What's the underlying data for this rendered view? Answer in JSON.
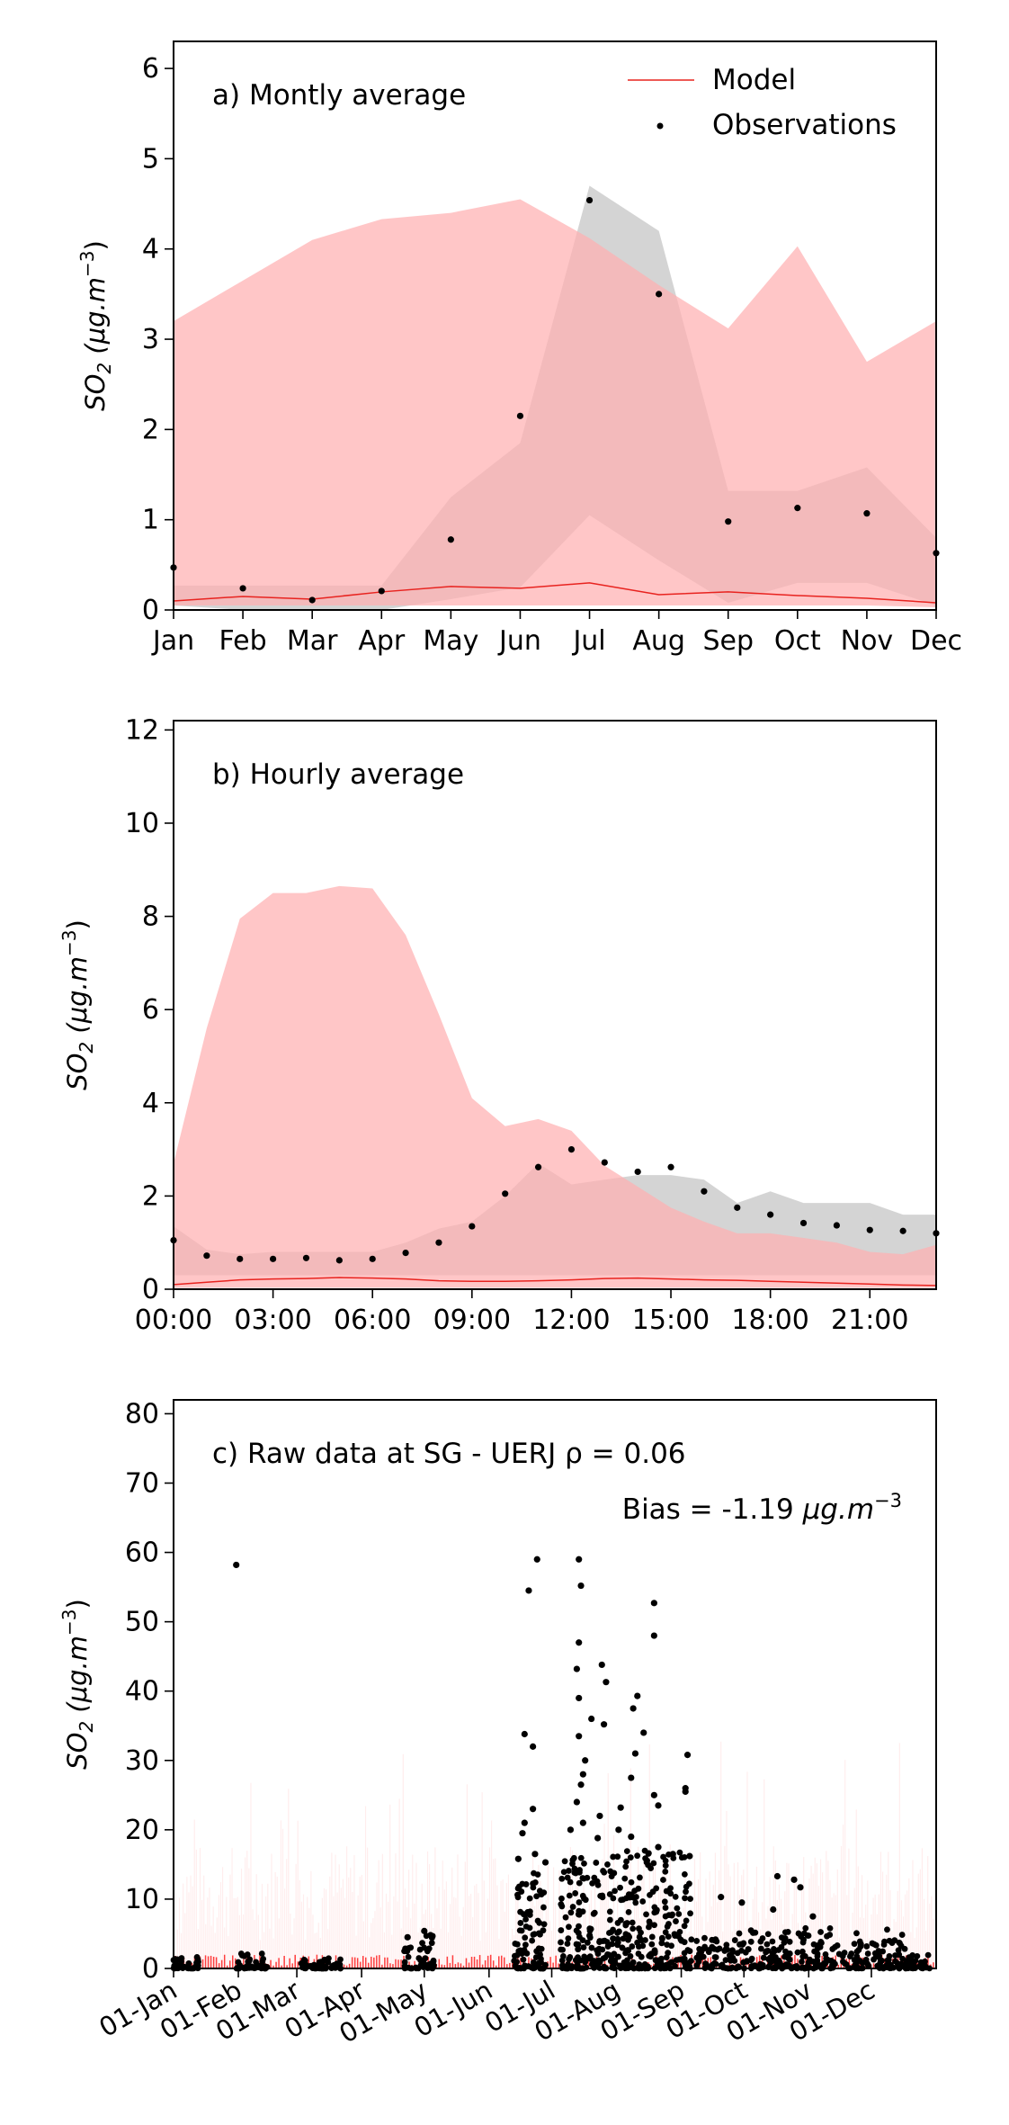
{
  "legend": {
    "model_label": "Model",
    "obs_label": "Observations"
  },
  "colors": {
    "model_line": "#e8231f",
    "model_band": "#ffb0b2",
    "obs_band": "#a9a9a9",
    "obs_point": "#000000",
    "raw_model": "#ff0000"
  },
  "chart_data": [
    {
      "type": "line",
      "title": "a) Montly average",
      "ylabel_main": "SO",
      "ylabel_sub": "2",
      "ylabel_units": "(μg.m",
      "ylabel_exp": "−3",
      "ylabel_close": ")",
      "ylim": [
        0,
        6.3
      ],
      "yticks": [
        0,
        1,
        2,
        3,
        4,
        5,
        6
      ],
      "categories": [
        "Jan",
        "Feb",
        "Mar",
        "Apr",
        "May",
        "Jun",
        "Jul",
        "Aug",
        "Sep",
        "Oct",
        "Nov",
        "Dec"
      ],
      "series": [
        {
          "name": "Model",
          "values": [
            0.1,
            0.15,
            0.12,
            0.2,
            0.26,
            0.24,
            0.3,
            0.17,
            0.2,
            0.16,
            0.13,
            0.08
          ]
        },
        {
          "name": "Observations",
          "values": [
            0.47,
            0.24,
            0.11,
            0.21,
            0.78,
            2.15,
            4.54,
            3.5,
            0.98,
            1.13,
            1.07,
            0.63
          ]
        }
      ],
      "model_band": {
        "upper": [
          3.2,
          3.65,
          4.1,
          4.33,
          4.4,
          4.55,
          4.12,
          3.6,
          3.12,
          4.03,
          2.75,
          3.2
        ],
        "lower": [
          0.05,
          0.05,
          0.05,
          0.05,
          0.05,
          0.05,
          0.05,
          0.05,
          0.05,
          0.05,
          0.05,
          0.03
        ]
      },
      "obs_band": {
        "upper": [
          0.27,
          0.27,
          0.27,
          0.27,
          1.25,
          1.85,
          4.7,
          4.2,
          1.32,
          1.32,
          1.58,
          0.8
        ],
        "lower": [
          0.05,
          0.0,
          0.0,
          0.0,
          0.12,
          0.25,
          1.05,
          0.55,
          0.08,
          0.3,
          0.3,
          0.05
        ]
      }
    },
    {
      "type": "line",
      "title": "b) Hourly average",
      "ylabel_main": "SO",
      "ylabel_sub": "2",
      "ylabel_units": "(μg.m",
      "ylabel_exp": "−3",
      "ylabel_close": ")",
      "ylim": [
        0,
        12.2
      ],
      "yticks": [
        0,
        2,
        4,
        6,
        8,
        10,
        12
      ],
      "xticks": [
        0,
        3,
        6,
        9,
        12,
        15,
        18,
        21
      ],
      "xtick_labels": [
        "00:00",
        "03:00",
        "06:00",
        "09:00",
        "12:00",
        "15:00",
        "18:00",
        "21:00"
      ],
      "x": [
        0,
        1,
        2,
        3,
        4,
        5,
        6,
        7,
        8,
        9,
        10,
        11,
        12,
        13,
        14,
        15,
        16,
        17,
        18,
        19,
        20,
        21,
        22,
        23
      ],
      "series": [
        {
          "name": "Model",
          "values": [
            0.1,
            0.15,
            0.2,
            0.22,
            0.23,
            0.25,
            0.24,
            0.22,
            0.18,
            0.17,
            0.17,
            0.18,
            0.2,
            0.23,
            0.24,
            0.22,
            0.2,
            0.19,
            0.17,
            0.15,
            0.13,
            0.11,
            0.09,
            0.08
          ]
        },
        {
          "name": "Observations",
          "values": [
            1.05,
            0.72,
            0.65,
            0.65,
            0.67,
            0.62,
            0.65,
            0.78,
            1.0,
            1.35,
            2.05,
            2.62,
            3.0,
            2.72,
            2.52,
            2.62,
            2.1,
            1.75,
            1.6,
            1.42,
            1.37,
            1.27,
            1.25,
            1.2
          ]
        }
      ],
      "model_band": {
        "upper": [
          2.7,
          5.6,
          7.95,
          8.5,
          8.5,
          8.65,
          8.6,
          7.6,
          5.9,
          4.1,
          3.5,
          3.65,
          3.4,
          2.65,
          2.2,
          1.75,
          1.45,
          1.2,
          1.2,
          1.1,
          1.0,
          0.8,
          0.75,
          0.95
        ],
        "lower": [
          0.03,
          0.03,
          0.03,
          0.03,
          0.03,
          0.03,
          0.03,
          0.03,
          0.03,
          0.03,
          0.03,
          0.03,
          0.03,
          0.03,
          0.03,
          0.03,
          0.03,
          0.03,
          0.03,
          0.03,
          0.03,
          0.03,
          0.03,
          0.03
        ]
      },
      "obs_band": {
        "upper": [
          1.35,
          0.85,
          0.75,
          0.8,
          0.8,
          0.8,
          0.8,
          1.0,
          1.3,
          1.45,
          2.0,
          2.7,
          2.25,
          2.35,
          2.45,
          2.45,
          2.35,
          1.85,
          2.1,
          1.85,
          1.85,
          1.85,
          1.6,
          1.6
        ],
        "lower": [
          0.3,
          0.3,
          0.3,
          0.3,
          0.3,
          0.3,
          0.3,
          0.3,
          0.3,
          0.3,
          0.3,
          0.3,
          0.3,
          0.3,
          0.3,
          0.3,
          0.3,
          0.3,
          0.3,
          0.3,
          0.3,
          0.3,
          0.3,
          0.3
        ]
      }
    },
    {
      "type": "scatter",
      "title": "c) Raw data at SG - UERJ ρ = 0.06",
      "bias_prefix": "Bias = -1.19 ",
      "bias_units": "μg.m",
      "bias_exp": "−3",
      "ylabel_main": "SO",
      "ylabel_sub": "2",
      "ylabel_units": "(μg.m",
      "ylabel_exp": "−3",
      "ylabel_close": ")",
      "ylim": [
        0,
        82
      ],
      "yticks": [
        0,
        10,
        20,
        30,
        40,
        50,
        60,
        70,
        80
      ],
      "xlim": [
        0,
        365
      ],
      "xticks": [
        0,
        31,
        59,
        90,
        120,
        151,
        181,
        212,
        243,
        273,
        304,
        334
      ],
      "xtick_labels": [
        "01-Jan",
        "01-Feb",
        "01-Mar",
        "01-Apr",
        "01-May",
        "01-Jun",
        "01-Jul",
        "01-Aug",
        "01-Sep",
        "01-Oct",
        "01-Nov",
        "01-Dec"
      ],
      "outliers": [
        {
          "x": 30,
          "y": 58.2
        },
        {
          "x": 170,
          "y": 54.5
        },
        {
          "x": 174,
          "y": 59
        },
        {
          "x": 194,
          "y": 59
        },
        {
          "x": 195,
          "y": 55.2
        },
        {
          "x": 193,
          "y": 43.2
        },
        {
          "x": 194,
          "y": 47
        },
        {
          "x": 194,
          "y": 39
        },
        {
          "x": 205,
          "y": 43.8
        },
        {
          "x": 207,
          "y": 41.3
        },
        {
          "x": 200,
          "y": 36
        },
        {
          "x": 206,
          "y": 35.2
        },
        {
          "x": 222,
          "y": 39.3
        },
        {
          "x": 220,
          "y": 37.5
        },
        {
          "x": 230,
          "y": 52.7
        },
        {
          "x": 230,
          "y": 48
        },
        {
          "x": 225,
          "y": 34
        },
        {
          "x": 221,
          "y": 31
        },
        {
          "x": 168,
          "y": 33.8
        },
        {
          "x": 172,
          "y": 32
        },
        {
          "x": 194,
          "y": 33.5
        },
        {
          "x": 197,
          "y": 30
        },
        {
          "x": 196,
          "y": 28
        },
        {
          "x": 246,
          "y": 30.8
        },
        {
          "x": 245,
          "y": 26
        },
        {
          "x": 245,
          "y": 25.5
        },
        {
          "x": 230,
          "y": 25
        },
        {
          "x": 232,
          "y": 23.5
        },
        {
          "x": 219,
          "y": 27.5
        },
        {
          "x": 214,
          "y": 23.2
        },
        {
          "x": 172,
          "y": 23
        },
        {
          "x": 168,
          "y": 21
        },
        {
          "x": 167,
          "y": 19.5
        },
        {
          "x": 195,
          "y": 26.5
        },
        {
          "x": 193,
          "y": 24
        },
        {
          "x": 204,
          "y": 22
        },
        {
          "x": 190,
          "y": 20
        },
        {
          "x": 196,
          "y": 21
        },
        {
          "x": 203,
          "y": 18.8
        },
        {
          "x": 213,
          "y": 20
        },
        {
          "x": 219,
          "y": 19
        },
        {
          "x": 232,
          "y": 17.5
        },
        {
          "x": 239,
          "y": 16.5
        },
        {
          "x": 247,
          "y": 16.2
        },
        {
          "x": 173,
          "y": 16.5
        },
        {
          "x": 178,
          "y": 15.3
        },
        {
          "x": 165,
          "y": 15.8
        },
        {
          "x": 297,
          "y": 12.8
        },
        {
          "x": 289,
          "y": 13.3
        },
        {
          "x": 300,
          "y": 11.7
        },
        {
          "x": 306,
          "y": 7.5
        },
        {
          "x": 262,
          "y": 10.3
        },
        {
          "x": 272,
          "y": 9.5
        },
        {
          "x": 287,
          "y": 8.5
        },
        {
          "x": 112,
          "y": 4.5
        },
        {
          "x": 120,
          "y": 5.4
        },
        {
          "x": 123,
          "y": 4.8
        }
      ],
      "dense_segments": [
        {
          "from": 0,
          "to": 12,
          "max": 1.8
        },
        {
          "from": 30,
          "to": 45,
          "max": 2.2
        },
        {
          "from": 60,
          "to": 80,
          "max": 1.5
        },
        {
          "from": 110,
          "to": 125,
          "max": 5
        },
        {
          "from": 163,
          "to": 178,
          "max": 14
        },
        {
          "from": 185,
          "to": 248,
          "max": 17
        },
        {
          "from": 250,
          "to": 300,
          "max": 5.5
        },
        {
          "from": 300,
          "to": 350,
          "max": 6
        },
        {
          "from": 350,
          "to": 362,
          "max": 2
        }
      ]
    }
  ]
}
